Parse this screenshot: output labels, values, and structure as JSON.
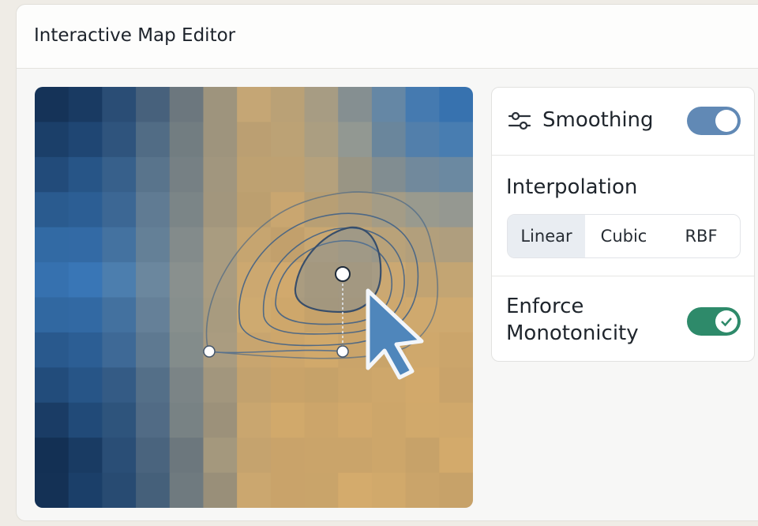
{
  "header": {
    "title": "Interactive Map Editor"
  },
  "panel": {
    "smoothing": {
      "label": "Smoothing",
      "enabled": true
    },
    "interpolation": {
      "label": "Interpolation",
      "options": [
        "Linear",
        "Cubic",
        "RBF"
      ],
      "selected": 0
    },
    "monotonicity": {
      "label": "Enforce Monotonicity",
      "enabled": true
    }
  }
}
